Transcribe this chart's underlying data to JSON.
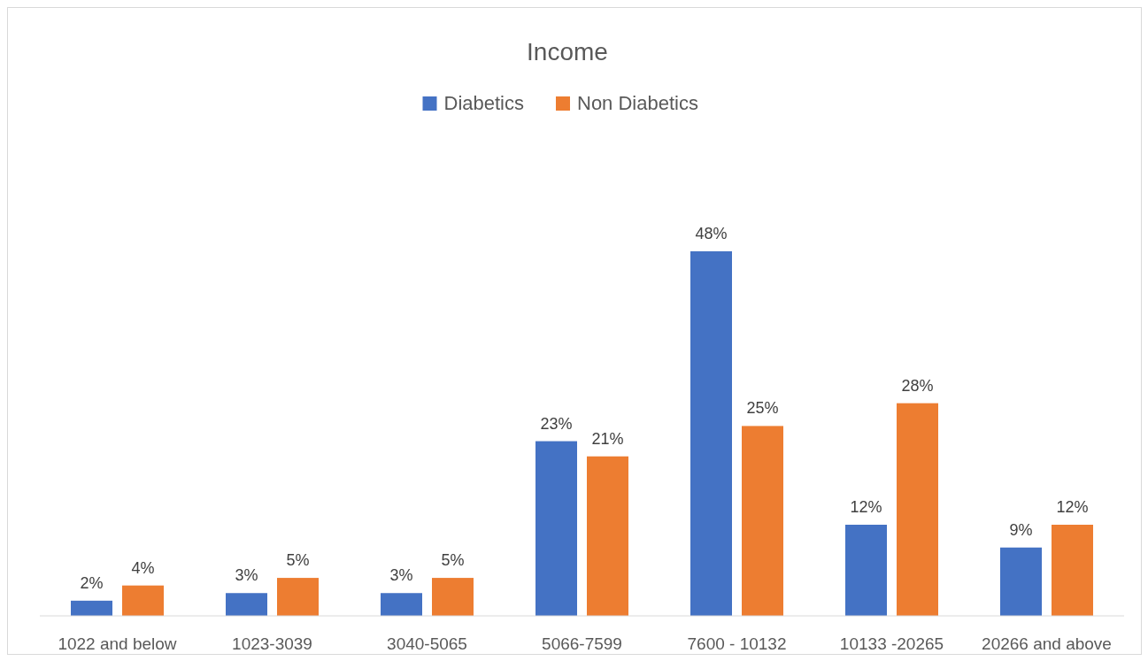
{
  "chart_data": {
    "type": "bar",
    "title": "Income",
    "categories": [
      "1022 and below",
      "1023-3039",
      "3040-5065",
      "5066-7599",
      "7600 - 10132",
      "10133 -20265",
      "20266 and above"
    ],
    "series": [
      {
        "name": "Diabetics",
        "color": "#4472c4",
        "values": [
          2,
          3,
          3,
          23,
          48,
          12,
          9
        ],
        "value_labels": [
          "2%",
          "3%",
          "3%",
          "23%",
          "48%",
          "12%",
          "9%"
        ]
      },
      {
        "name": "Non Diabetics",
        "color": "#ed7d31",
        "values": [
          4,
          5,
          5,
          21,
          25,
          28,
          12
        ],
        "value_labels": [
          "4%",
          "5%",
          "5%",
          "21%",
          "25%",
          "28%",
          "12%"
        ]
      }
    ],
    "legend": "top",
    "grid": false
  }
}
